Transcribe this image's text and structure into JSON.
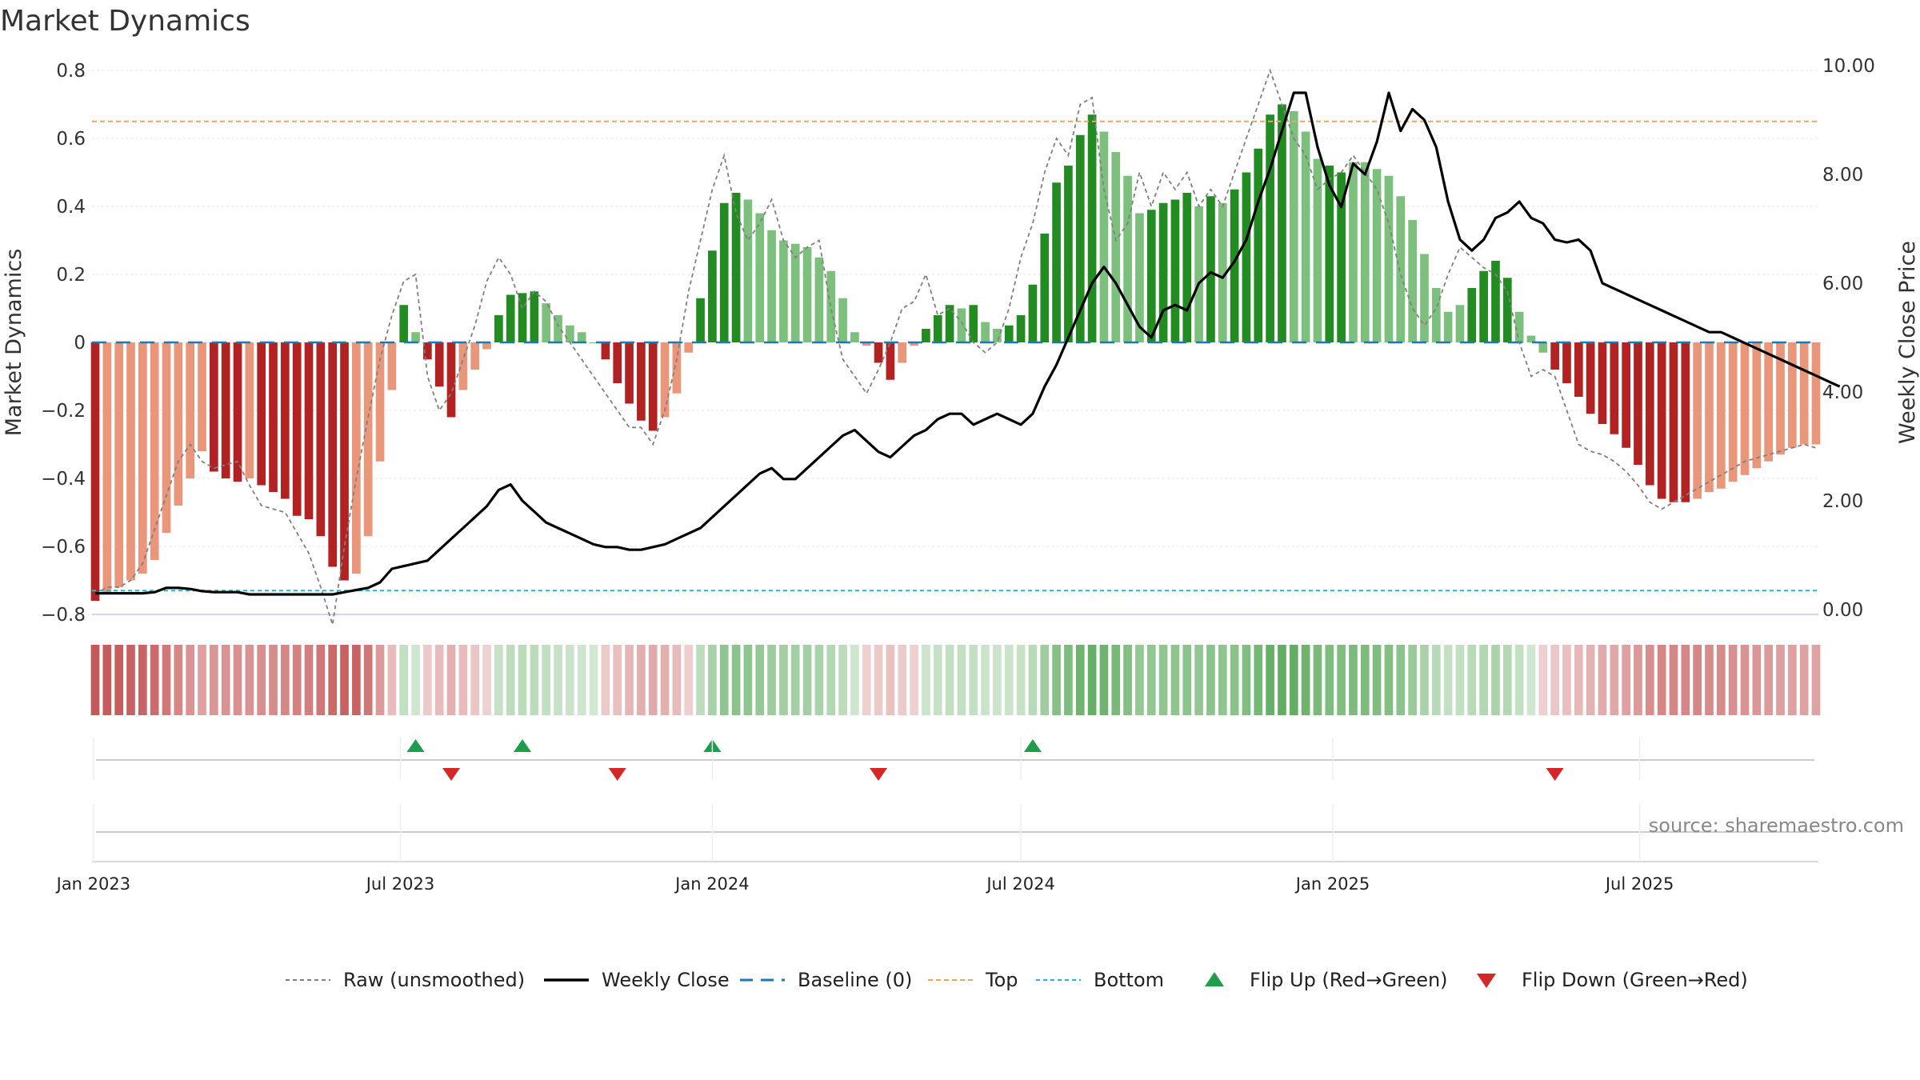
{
  "title": "Market Dynamics",
  "source": "source: sharemaestro.com",
  "chart_data": {
    "type": "bar",
    "title": "Market Dynamics",
    "ylabel": "Market Dynamics",
    "y2label": "Weekly Close Price",
    "ylim": [
      -0.8,
      0.8
    ],
    "y2lim": [
      0,
      10
    ],
    "yticks": [
      "0.8",
      "0.6",
      "0.4",
      "0.2",
      "0",
      "−0.2",
      "−0.4",
      "−0.6",
      "−0.8"
    ],
    "y2ticks": [
      "10.00",
      "8.00",
      "6.00",
      "4.00",
      "2.00",
      "0.00"
    ],
    "xticks": [
      "Jan 2023",
      "Jul 2023",
      "Jan 2024",
      "Jul 2024",
      "Jan 2025",
      "Jul 2025"
    ],
    "x_start": "2023-01-02",
    "x_step_days": 7,
    "top_level": 0.65,
    "bottom_level": -0.73,
    "grid": true,
    "legend_position": "bottom-center",
    "colors": {
      "dark_green": "#228B22",
      "light_green": "#7DC07D",
      "dark_red": "#B22222",
      "light_red": "#E9967A",
      "close": "#000000",
      "raw": "#808080",
      "baseline": "#1F77B4",
      "top": "#F4A460",
      "bottom": "#17BECF",
      "flip_up": "#1E9E4A",
      "flip_down": "#D62728"
    },
    "series": [
      {
        "name": "Market Dynamics",
        "values": [
          -0.76,
          -0.74,
          -0.72,
          -0.7,
          -0.68,
          -0.64,
          -0.56,
          -0.48,
          -0.4,
          -0.32,
          -0.38,
          -0.4,
          -0.41,
          -0.4,
          -0.42,
          -0.44,
          -0.46,
          -0.51,
          -0.52,
          -0.57,
          -0.66,
          -0.7,
          -0.68,
          -0.57,
          -0.35,
          -0.14,
          0.11,
          0.03,
          -0.05,
          -0.13,
          -0.22,
          -0.14,
          -0.08,
          -0.02,
          0.08,
          0.14,
          0.145,
          0.15,
          0.115,
          0.08,
          0.05,
          0.03,
          0.0,
          -0.05,
          -0.12,
          -0.18,
          -0.23,
          -0.26,
          -0.22,
          -0.15,
          -0.03,
          0.13,
          0.27,
          0.41,
          0.44,
          0.42,
          0.38,
          0.33,
          0.3,
          0.29,
          0.28,
          0.25,
          0.21,
          0.13,
          0.03,
          -0.01,
          -0.06,
          -0.11,
          -0.06,
          -0.01,
          0.04,
          0.08,
          0.11,
          0.1,
          0.11,
          0.06,
          0.04,
          0.05,
          0.08,
          0.17,
          0.32,
          0.47,
          0.52,
          0.61,
          0.67,
          0.62,
          0.56,
          0.49,
          0.38,
          0.39,
          0.41,
          0.42,
          0.44,
          0.4,
          0.43,
          0.41,
          0.45,
          0.5,
          0.57,
          0.67,
          0.7,
          0.68,
          0.62,
          0.54,
          0.52,
          0.5,
          0.53,
          0.53,
          0.51,
          0.49,
          0.43,
          0.36,
          0.26,
          0.16,
          0.09,
          0.11,
          0.16,
          0.21,
          0.24,
          0.19,
          0.09,
          0.02,
          -0.03,
          -0.08,
          -0.12,
          -0.16,
          -0.21,
          -0.24,
          -0.27,
          -0.31,
          -0.36,
          -0.42,
          -0.46,
          -0.47,
          -0.47,
          -0.46,
          -0.44,
          -0.43,
          -0.41,
          -0.39,
          -0.37,
          -0.35,
          -0.33,
          -0.31,
          -0.3,
          -0.3
        ]
      },
      {
        "name": "Raw (unsmoothed)",
        "values": [
          -0.74,
          -0.72,
          -0.72,
          -0.7,
          -0.65,
          -0.55,
          -0.45,
          -0.35,
          -0.3,
          -0.35,
          -0.37,
          -0.36,
          -0.35,
          -0.42,
          -0.48,
          -0.49,
          -0.5,
          -0.56,
          -0.62,
          -0.72,
          -0.83,
          -0.6,
          -0.4,
          -0.22,
          -0.05,
          0.08,
          0.18,
          0.2,
          -0.1,
          -0.2,
          -0.15,
          -0.05,
          0.05,
          0.18,
          0.25,
          0.2,
          0.1,
          0.15,
          0.12,
          0.05,
          0.0,
          -0.05,
          -0.1,
          -0.15,
          -0.2,
          -0.25,
          -0.25,
          -0.3,
          -0.2,
          -0.05,
          0.15,
          0.3,
          0.45,
          0.55,
          0.38,
          0.3,
          0.35,
          0.42,
          0.3,
          0.25,
          0.28,
          0.3,
          0.1,
          -0.05,
          -0.1,
          -0.15,
          -0.08,
          0.0,
          0.1,
          0.12,
          0.2,
          0.08,
          0.1,
          0.06,
          0.0,
          -0.03,
          0.0,
          0.1,
          0.25,
          0.35,
          0.5,
          0.6,
          0.55,
          0.7,
          0.72,
          0.45,
          0.3,
          0.35,
          0.5,
          0.4,
          0.5,
          0.45,
          0.5,
          0.4,
          0.45,
          0.4,
          0.5,
          0.6,
          0.7,
          0.8,
          0.7,
          0.6,
          0.55,
          0.45,
          0.48,
          0.5,
          0.55,
          0.5,
          0.45,
          0.35,
          0.2,
          0.1,
          0.05,
          0.1,
          0.2,
          0.28,
          0.25,
          0.22,
          0.2,
          0.15,
          0.0,
          -0.1,
          -0.08,
          -0.1,
          -0.2,
          -0.3,
          -0.32,
          -0.33,
          -0.35,
          -0.38,
          -0.42,
          -0.47,
          -0.49,
          -0.47,
          -0.45,
          -0.43,
          -0.41,
          -0.39,
          -0.37,
          -0.35,
          -0.34,
          -0.33,
          -0.32,
          -0.31,
          -0.3,
          -0.31
        ]
      },
      {
        "name": "Weekly Close",
        "axis": "right",
        "values": [
          0.3,
          0.3,
          0.3,
          0.3,
          0.3,
          0.32,
          0.4,
          0.4,
          0.38,
          0.34,
          0.32,
          0.32,
          0.32,
          0.28,
          0.28,
          0.28,
          0.28,
          0.28,
          0.28,
          0.28,
          0.28,
          0.32,
          0.36,
          0.4,
          0.5,
          0.75,
          0.8,
          0.85,
          0.9,
          1.1,
          1.3,
          1.5,
          1.7,
          1.9,
          2.2,
          2.3,
          2.0,
          1.8,
          1.6,
          1.5,
          1.4,
          1.3,
          1.2,
          1.15,
          1.15,
          1.1,
          1.1,
          1.15,
          1.2,
          1.3,
          1.4,
          1.5,
          1.7,
          1.9,
          2.1,
          2.3,
          2.5,
          2.6,
          2.4,
          2.4,
          2.6,
          2.8,
          3.0,
          3.2,
          3.3,
          3.1,
          2.9,
          2.8,
          3.0,
          3.2,
          3.3,
          3.5,
          3.6,
          3.6,
          3.4,
          3.5,
          3.6,
          3.5,
          3.4,
          3.6,
          4.1,
          4.5,
          5.0,
          5.5,
          6.0,
          6.3,
          6.0,
          5.6,
          5.2,
          5.0,
          5.5,
          5.6,
          5.5,
          6.0,
          6.2,
          6.1,
          6.4,
          6.8,
          7.5,
          8.1,
          8.8,
          9.5,
          9.5,
          8.5,
          7.8,
          7.4,
          8.2,
          8.0,
          8.6,
          9.5,
          8.8,
          9.2,
          9.0,
          8.5,
          7.5,
          6.8,
          6.6,
          6.8,
          7.2,
          7.3,
          7.5,
          7.2,
          7.1,
          6.8,
          6.75,
          6.8,
          6.6,
          6.0,
          5.9,
          5.8,
          5.7,
          5.6,
          5.5,
          5.4,
          5.3,
          5.2,
          5.1,
          5.1,
          5.0,
          4.9,
          4.8,
          4.7,
          4.6,
          4.5,
          4.4,
          4.3,
          4.2,
          4.1
        ]
      }
    ],
    "bar_colors": [
      "dark_red",
      "light_red",
      "light_red",
      "light_red",
      "light_red",
      "light_red",
      "light_red",
      "light_red",
      "light_red",
      "light_red",
      "dark_red",
      "dark_red",
      "dark_red",
      "light_red",
      "dark_red",
      "dark_red",
      "dark_red",
      "dark_red",
      "dark_red",
      "dark_red",
      "dark_red",
      "dark_red",
      "light_red",
      "light_red",
      "light_red",
      "light_red",
      "dark_green",
      "light_green",
      "dark_red",
      "dark_red",
      "dark_red",
      "light_red",
      "light_red",
      "light_red",
      "dark_green",
      "dark_green",
      "dark_green",
      "dark_green",
      "light_green",
      "light_green",
      "light_green",
      "light_green",
      "light_green",
      "dark_red",
      "dark_red",
      "dark_red",
      "dark_red",
      "dark_red",
      "light_red",
      "light_red",
      "light_red",
      "dark_green",
      "dark_green",
      "dark_green",
      "dark_green",
      "light_green",
      "light_green",
      "light_green",
      "light_green",
      "light_green",
      "light_green",
      "light_green",
      "light_green",
      "light_green",
      "light_green",
      "light_red",
      "dark_red",
      "dark_red",
      "light_red",
      "light_red",
      "dark_green",
      "dark_green",
      "dark_green",
      "light_green",
      "dark_green",
      "light_green",
      "light_green",
      "dark_green",
      "dark_green",
      "dark_green",
      "dark_green",
      "dark_green",
      "dark_green",
      "dark_green",
      "dark_green",
      "light_green",
      "light_green",
      "light_green",
      "light_green",
      "dark_green",
      "dark_green",
      "dark_green",
      "dark_green",
      "light_green",
      "dark_green",
      "light_green",
      "dark_green",
      "dark_green",
      "dark_green",
      "dark_green",
      "dark_green",
      "light_green",
      "light_green",
      "light_green",
      "dark_green",
      "dark_green",
      "light_green",
      "light_green",
      "light_green",
      "light_green",
      "light_green",
      "light_green",
      "light_green",
      "light_green",
      "light_green",
      "light_green",
      "dark_green",
      "dark_green",
      "dark_green",
      "dark_green",
      "light_green",
      "light_green",
      "light_green",
      "dark_red",
      "dark_red",
      "dark_red",
      "dark_red",
      "dark_red",
      "dark_red",
      "dark_red",
      "dark_red",
      "dark_red",
      "dark_red",
      "dark_red",
      "dark_red",
      "light_red",
      "light_red",
      "light_red",
      "light_red",
      "light_red",
      "light_red",
      "light_red",
      "light_red",
      "light_red",
      "light_red",
      "light_red",
      "light_red"
    ],
    "flip_up_weeks": [
      27,
      36,
      52,
      79
    ],
    "flip_down_weeks": [
      30,
      44,
      66,
      123
    ],
    "legend": [
      {
        "label": "Raw (unsmoothed)",
        "style": "dotted-gray"
      },
      {
        "label": "Weekly Close",
        "style": "solid-black"
      },
      {
        "label": "Baseline (0)",
        "style": "dashed-blue"
      },
      {
        "label": "Top",
        "style": "dotted-orange"
      },
      {
        "label": "Bottom",
        "style": "dotted-cyan"
      },
      {
        "label": "Flip Up (Red→Green)",
        "style": "triangle-up-green"
      },
      {
        "label": "Flip Down (Green→Red)",
        "style": "triangle-down-red"
      }
    ]
  }
}
